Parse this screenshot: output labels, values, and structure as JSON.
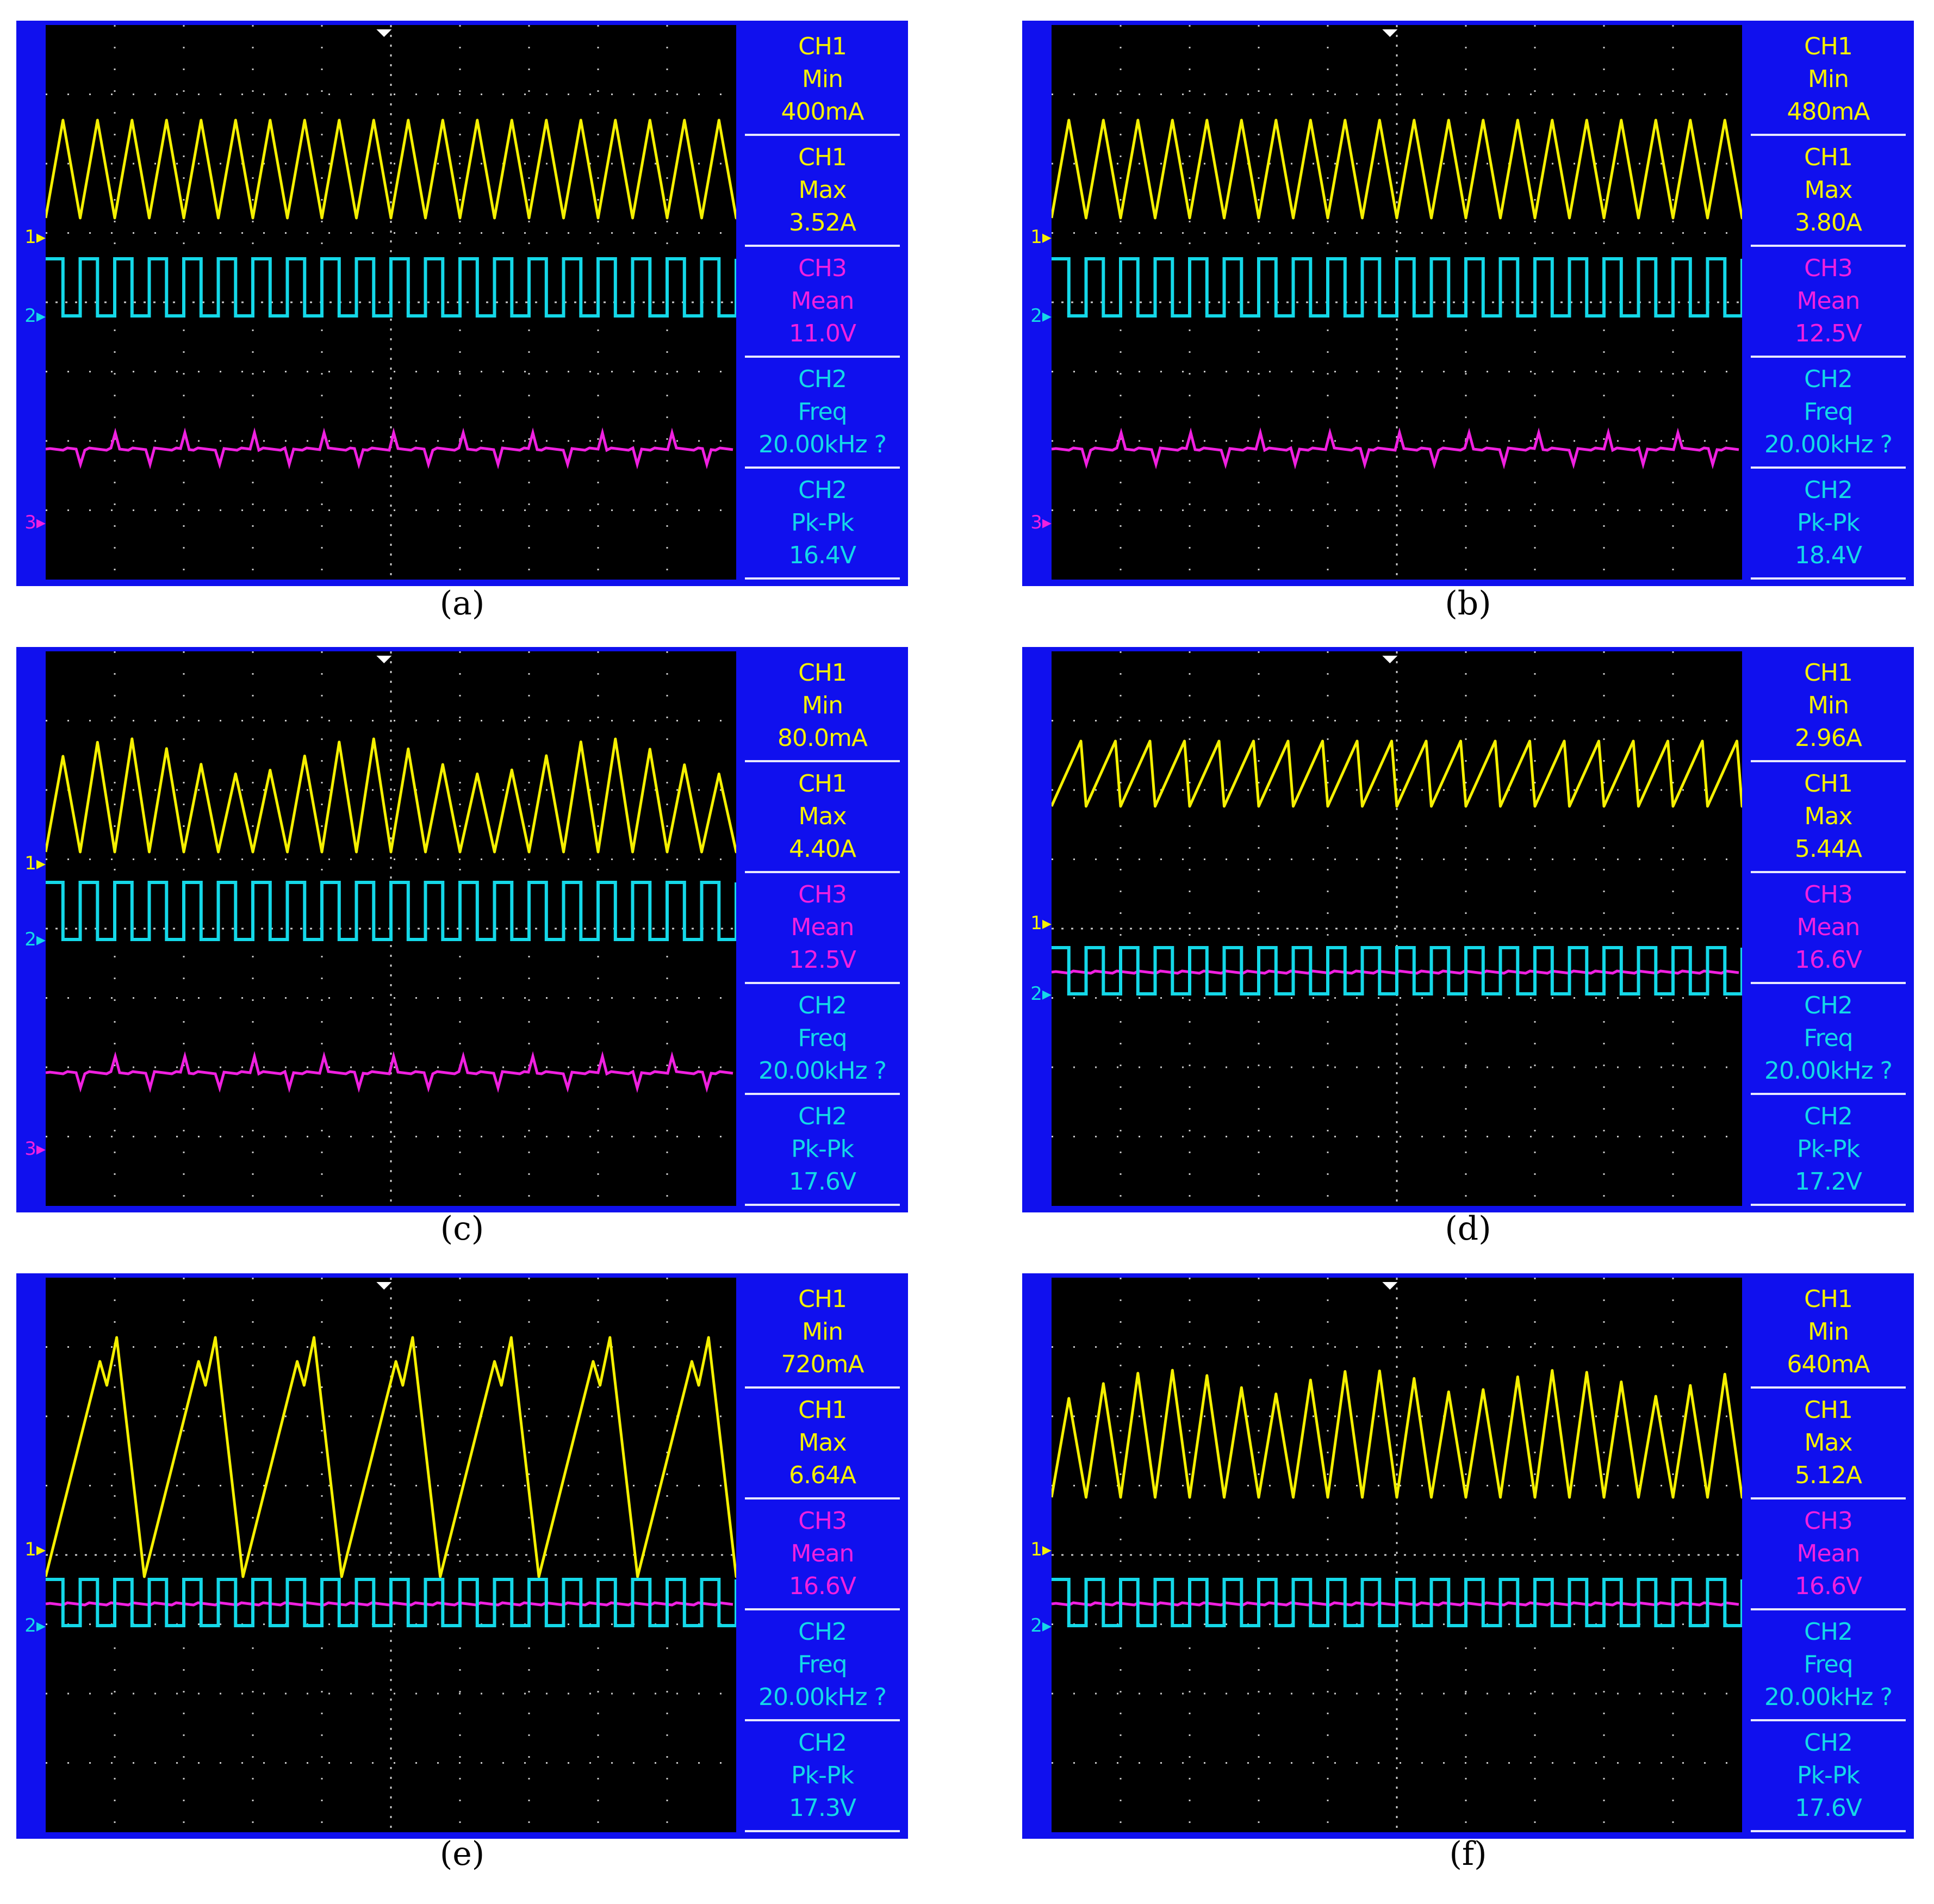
{
  "colors": {
    "ch1": "#f5f000",
    "ch2": "#14d8e8",
    "ch3": "#f020e0",
    "frame": "#1010ee",
    "screen": "#000000",
    "grid": "#c8c8c8"
  },
  "panels": [
    {
      "caption": "(a)",
      "markers": {
        "ch1": "1",
        "ch2": "2",
        "ch3": "3"
      },
      "measurements": [
        {
          "ch": "CH1",
          "type": "Min",
          "value": "400mA",
          "color": "#f5f000"
        },
        {
          "ch": "CH1",
          "type": "Max",
          "value": "3.52A",
          "color": "#f5f000"
        },
        {
          "ch": "CH3",
          "type": "Mean",
          "value": "11.0V",
          "color": "#f020e0"
        },
        {
          "ch": "CH2",
          "type": "Freq",
          "value": "20.00kHz ?",
          "color": "#14d8e8"
        },
        {
          "ch": "CH2",
          "type": "Pk-Pk",
          "value": "16.4V",
          "color": "#14d8e8"
        }
      ]
    },
    {
      "caption": "(b)",
      "markers": {
        "ch1": "1",
        "ch2": "2",
        "ch3": "3"
      },
      "measurements": [
        {
          "ch": "CH1",
          "type": "Min",
          "value": "480mA",
          "color": "#f5f000"
        },
        {
          "ch": "CH1",
          "type": "Max",
          "value": "3.80A",
          "color": "#f5f000"
        },
        {
          "ch": "CH3",
          "type": "Mean",
          "value": "12.5V",
          "color": "#f020e0"
        },
        {
          "ch": "CH2",
          "type": "Freq",
          "value": "20.00kHz ?",
          "color": "#14d8e8"
        },
        {
          "ch": "CH2",
          "type": "Pk-Pk",
          "value": "18.4V",
          "color": "#14d8e8"
        }
      ]
    },
    {
      "caption": "(c)",
      "markers": {
        "ch1": "1",
        "ch2": "2",
        "ch3": "3"
      },
      "measurements": [
        {
          "ch": "CH1",
          "type": "Min",
          "value": "80.0mA",
          "color": "#f5f000"
        },
        {
          "ch": "CH1",
          "type": "Max",
          "value": "4.40A",
          "color": "#f5f000"
        },
        {
          "ch": "CH3",
          "type": "Mean",
          "value": "12.5V",
          "color": "#f020e0"
        },
        {
          "ch": "CH2",
          "type": "Freq",
          "value": "20.00kHz ?",
          "color": "#14d8e8"
        },
        {
          "ch": "CH2",
          "type": "Pk-Pk",
          "value": "17.6V",
          "color": "#14d8e8"
        }
      ]
    },
    {
      "caption": "(d)",
      "markers": {
        "ch1": "1",
        "ch2": "2",
        "ch3": ""
      },
      "measurements": [
        {
          "ch": "CH1",
          "type": "Min",
          "value": "2.96A",
          "color": "#f5f000"
        },
        {
          "ch": "CH1",
          "type": "Max",
          "value": "5.44A",
          "color": "#f5f000"
        },
        {
          "ch": "CH3",
          "type": "Mean",
          "value": "16.6V",
          "color": "#f020e0"
        },
        {
          "ch": "CH2",
          "type": "Freq",
          "value": "20.00kHz ?",
          "color": "#14d8e8"
        },
        {
          "ch": "CH2",
          "type": "Pk-Pk",
          "value": "17.2V",
          "color": "#14d8e8"
        }
      ]
    },
    {
      "caption": "(e)",
      "markers": {
        "ch1": "1",
        "ch2": "2",
        "ch3": ""
      },
      "measurements": [
        {
          "ch": "CH1",
          "type": "Min",
          "value": "720mA",
          "color": "#f5f000"
        },
        {
          "ch": "CH1",
          "type": "Max",
          "value": "6.64A",
          "color": "#f5f000"
        },
        {
          "ch": "CH3",
          "type": "Mean",
          "value": "16.6V",
          "color": "#f020e0"
        },
        {
          "ch": "CH2",
          "type": "Freq",
          "value": "20.00kHz ?",
          "color": "#14d8e8"
        },
        {
          "ch": "CH2",
          "type": "Pk-Pk",
          "value": "17.3V",
          "color": "#14d8e8"
        }
      ]
    },
    {
      "caption": "(f)",
      "markers": {
        "ch1": "1",
        "ch2": "2",
        "ch3": ""
      },
      "measurements": [
        {
          "ch": "CH1",
          "type": "Min",
          "value": "640mA",
          "color": "#f5f000"
        },
        {
          "ch": "CH1",
          "type": "Max",
          "value": "5.12A",
          "color": "#f5f000"
        },
        {
          "ch": "CH3",
          "type": "Mean",
          "value": "16.6V",
          "color": "#f020e0"
        },
        {
          "ch": "CH2",
          "type": "Freq",
          "value": "20.00kHz ?",
          "color": "#14d8e8"
        },
        {
          "ch": "CH2",
          "type": "Pk-Pk",
          "value": "17.6V",
          "color": "#14d8e8"
        }
      ]
    }
  ]
}
